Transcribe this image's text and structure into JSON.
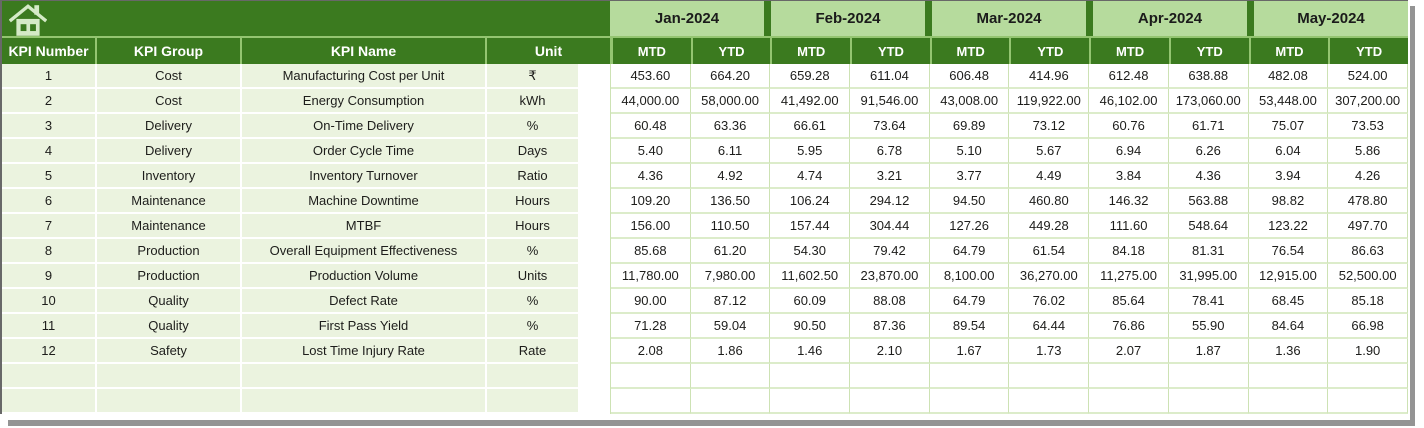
{
  "colors": {
    "dark-green": "#3b7a1f",
    "month-green": "#b6db9d",
    "sep-green": "#94c571",
    "cell-green": "#ebf3df",
    "grid-green": "#cde2b4",
    "rowline-green": "#dcecca",
    "icon-green": "#d5eac7",
    "text-dark": "#1d1d1b",
    "shadow-gray": "#949494",
    "border-gray": "#686868"
  },
  "header": {
    "home_icon": "home-icon",
    "col_headers": [
      "KPI Number",
      "KPI Group",
      "KPI Name",
      "Unit"
    ],
    "months": [
      "Jan-2024",
      "Feb-2024",
      "Mar-2024",
      "Apr-2024",
      "May-2024"
    ],
    "sub_headers": [
      "MTD",
      "YTD"
    ]
  },
  "rows": [
    {
      "number": "1",
      "group": "Cost",
      "name": "Manufacturing Cost per Unit",
      "unit": "₹",
      "values": [
        "453.60",
        "664.20",
        "659.28",
        "611.04",
        "606.48",
        "414.96",
        "612.48",
        "638.88",
        "482.08",
        "524.00"
      ]
    },
    {
      "number": "2",
      "group": "Cost",
      "name": "Energy Consumption",
      "unit": "kWh",
      "values": [
        "44,000.00",
        "58,000.00",
        "41,492.00",
        "91,546.00",
        "43,008.00",
        "119,922.00",
        "46,102.00",
        "173,060.00",
        "53,448.00",
        "307,200.00"
      ]
    },
    {
      "number": "3",
      "group": "Delivery",
      "name": "On-Time Delivery",
      "unit": "%",
      "values": [
        "60.48",
        "63.36",
        "66.61",
        "73.64",
        "69.89",
        "73.12",
        "60.76",
        "61.71",
        "75.07",
        "73.53"
      ]
    },
    {
      "number": "4",
      "group": "Delivery",
      "name": "Order Cycle Time",
      "unit": "Days",
      "values": [
        "5.40",
        "6.11",
        "5.95",
        "6.78",
        "5.10",
        "5.67",
        "6.94",
        "6.26",
        "6.04",
        "5.86"
      ]
    },
    {
      "number": "5",
      "group": "Inventory",
      "name": "Inventory Turnover",
      "unit": "Ratio",
      "values": [
        "4.36",
        "4.92",
        "4.74",
        "3.21",
        "3.77",
        "4.49",
        "3.84",
        "4.36",
        "3.94",
        "4.26"
      ]
    },
    {
      "number": "6",
      "group": "Maintenance",
      "name": "Machine Downtime",
      "unit": "Hours",
      "values": [
        "109.20",
        "136.50",
        "106.24",
        "294.12",
        "94.50",
        "460.80",
        "146.32",
        "563.88",
        "98.82",
        "478.80"
      ]
    },
    {
      "number": "7",
      "group": "Maintenance",
      "name": "MTBF",
      "unit": "Hours",
      "values": [
        "156.00",
        "110.50",
        "157.44",
        "304.44",
        "127.26",
        "449.28",
        "111.60",
        "548.64",
        "123.22",
        "497.70"
      ]
    },
    {
      "number": "8",
      "group": "Production",
      "name": "Overall Equipment Effectiveness",
      "unit": "%",
      "values": [
        "85.68",
        "61.20",
        "54.30",
        "79.42",
        "64.79",
        "61.54",
        "84.18",
        "81.31",
        "76.54",
        "86.63"
      ]
    },
    {
      "number": "9",
      "group": "Production",
      "name": "Production Volume",
      "unit": "Units",
      "values": [
        "11,780.00",
        "7,980.00",
        "11,602.50",
        "23,870.00",
        "8,100.00",
        "36,270.00",
        "11,275.00",
        "31,995.00",
        "12,915.00",
        "52,500.00"
      ]
    },
    {
      "number": "10",
      "group": "Quality",
      "name": "Defect Rate",
      "unit": "%",
      "values": [
        "90.00",
        "87.12",
        "60.09",
        "88.08",
        "64.79",
        "76.02",
        "85.64",
        "78.41",
        "68.45",
        "85.18"
      ]
    },
    {
      "number": "11",
      "group": "Quality",
      "name": "First Pass Yield",
      "unit": "%",
      "values": [
        "71.28",
        "59.04",
        "90.50",
        "87.36",
        "89.54",
        "64.44",
        "76.86",
        "55.90",
        "84.64",
        "66.98"
      ]
    },
    {
      "number": "12",
      "group": "Safety",
      "name": "Lost Time Injury Rate",
      "unit": "Rate",
      "values": [
        "2.08",
        "1.86",
        "1.46",
        "2.10",
        "1.67",
        "1.73",
        "2.07",
        "1.87",
        "1.36",
        "1.90"
      ]
    }
  ],
  "empty_rows": 2
}
